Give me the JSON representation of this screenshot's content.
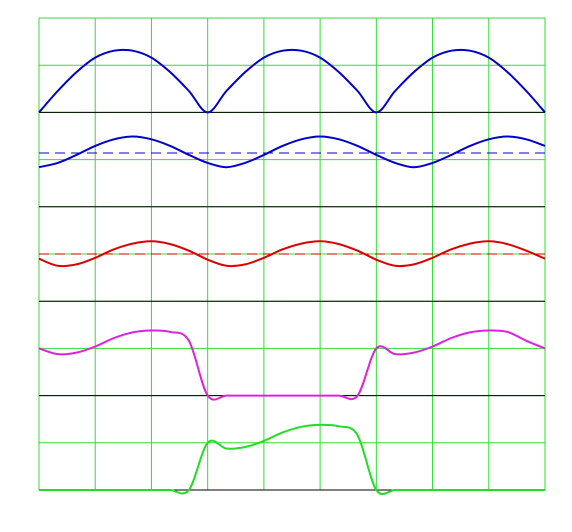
{
  "chart_data": {
    "type": "line",
    "title": "",
    "grid": true,
    "grid_color": "#33dd33",
    "x_divisions": 9,
    "y_divisions_total": 10,
    "x": [
      0,
      20,
      40,
      60,
      80,
      100,
      120,
      140,
      160,
      180,
      200,
      220,
      240,
      260,
      280,
      300,
      320,
      340,
      360,
      380,
      400,
      420,
      440,
      460,
      480,
      500,
      520,
      540
    ],
    "panels": [
      {
        "name": "panel-1",
        "ylim": [
          0,
          1.5
        ],
        "baseline_color": "#000000",
        "series": [
          {
            "color": "#0000cc",
            "values": [
              0,
              0.34,
              0.64,
              0.87,
              0.98,
              0.98,
              0.87,
              0.64,
              0.34,
              0,
              0.34,
              0.64,
              0.87,
              0.98,
              0.98,
              0.87,
              0.64,
              0.34,
              0,
              0.34,
              0.64,
              0.87,
              0.98,
              0.98,
              0.87,
              0.64,
              0.34,
              0
            ]
          }
        ]
      },
      {
        "name": "panel-2",
        "ylim": [
          -0.5,
          1.5
        ],
        "baseline_color": "#000000",
        "mean": {
          "value": 0.64,
          "color": "#0000cc",
          "dash": "10,6"
        },
        "series": [
          {
            "color": "#0000cc",
            "values": [
              0.34,
              0.43,
              0.6,
              0.79,
              0.93,
              0.99,
              0.93,
              0.79,
              0.6,
              0.43,
              0.34,
              0.43,
              0.6,
              0.79,
              0.93,
              0.99,
              0.93,
              0.79,
              0.6,
              0.43,
              0.34,
              0.43,
              0.6,
              0.79,
              0.93,
              0.99,
              0.93,
              0.79
            ]
          }
        ]
      },
      {
        "name": "panel-3",
        "ylim": [
          -1,
          1
        ],
        "baseline_color": "#000000",
        "mean": {
          "value": 0.0,
          "color": "#cc0000",
          "dash": "10,6"
        },
        "series": [
          {
            "color": "#dd0000",
            "values": [
              -0.1,
              -0.25,
              -0.22,
              -0.08,
              0.1,
              0.22,
              0.27,
              0.21,
              0.07,
              -0.12,
              -0.25,
              -0.22,
              -0.08,
              0.1,
              0.22,
              0.27,
              0.21,
              0.07,
              -0.12,
              -0.25,
              -0.22,
              -0.08,
              0.1,
              0.22,
              0.27,
              0.21,
              0.07,
              -0.1
            ]
          }
        ]
      },
      {
        "name": "panel-4",
        "ylim": [
          -1,
          1
        ],
        "baseline_color": "#000000",
        "series": [
          {
            "color": "#dd22dd",
            "values": [
              0.0,
              -0.12,
              -0.09,
              0.04,
              0.22,
              0.34,
              0.38,
              0.35,
              0.16,
              -1.0,
              -1.0,
              -1.0,
              -1.0,
              -1.0,
              -1.0,
              -1.0,
              -1.0,
              -1.0,
              0.0,
              -0.12,
              -0.09,
              0.04,
              0.22,
              0.34,
              0.38,
              0.35,
              0.16,
              0.0
            ]
          }
        ]
      },
      {
        "name": "panel-5",
        "ylim": [
          -1,
          1
        ],
        "baseline_color": "#000000",
        "series": [
          {
            "color": "#22dd22",
            "values": [
              -1.0,
              -1.0,
              -1.0,
              -1.0,
              -1.0,
              -1.0,
              -1.0,
              -1.0,
              -1.0,
              0.0,
              -0.12,
              -0.09,
              0.04,
              0.22,
              0.34,
              0.38,
              0.35,
              0.16,
              -1.0,
              -1.0,
              -1.0,
              -1.0,
              -1.0,
              -1.0,
              -1.0,
              -1.0,
              -1.0,
              -1.0
            ]
          }
        ]
      }
    ]
  }
}
